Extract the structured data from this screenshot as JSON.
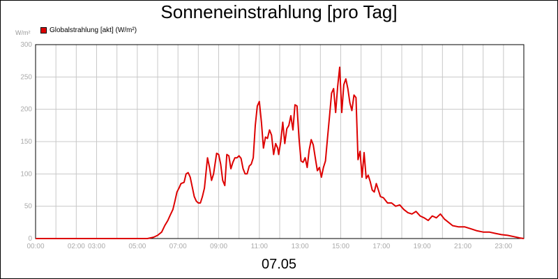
{
  "chart_data": {
    "type": "line",
    "title": "Sonneneinstrahlung [pro Tag]",
    "ylabel": "W/m²",
    "xlabel": "07.05",
    "legend": {
      "label": "Globalstrahlung [akt] (W/m²)",
      "color": "#dd0000",
      "placement": "top-left"
    },
    "ylim": [
      0,
      300
    ],
    "yticks": [
      0,
      50,
      100,
      150,
      200,
      250,
      300
    ],
    "xlim": [
      0,
      24
    ],
    "xticks": [
      {
        "x": 0,
        "label": "00:00"
      },
      {
        "x": 2,
        "label": "02:00"
      },
      {
        "x": 3,
        "label": "03:00"
      },
      {
        "x": 5,
        "label": "05:00"
      },
      {
        "x": 7,
        "label": "07:00"
      },
      {
        "x": 9,
        "label": "09:00"
      },
      {
        "x": 11,
        "label": "11:00"
      },
      {
        "x": 13,
        "label": "13:00"
      },
      {
        "x": 15,
        "label": "15:00"
      },
      {
        "x": 17,
        "label": "17:00"
      },
      {
        "x": 19,
        "label": "19:00"
      },
      {
        "x": 21,
        "label": "21:00"
      },
      {
        "x": 23,
        "label": "23:00"
      }
    ],
    "grid": true,
    "series": [
      {
        "name": "Globalstrahlung [akt] (W/m²)",
        "color": "#dd0000",
        "points": [
          [
            0,
            0
          ],
          [
            5.5,
            0
          ],
          [
            5.8,
            2
          ],
          [
            6.0,
            5
          ],
          [
            6.2,
            10
          ],
          [
            6.35,
            20
          ],
          [
            6.5,
            28
          ],
          [
            6.6,
            35
          ],
          [
            6.75,
            45
          ],
          [
            6.85,
            58
          ],
          [
            6.95,
            72
          ],
          [
            7.05,
            78
          ],
          [
            7.15,
            85
          ],
          [
            7.3,
            87
          ],
          [
            7.4,
            100
          ],
          [
            7.5,
            102
          ],
          [
            7.6,
            95
          ],
          [
            7.7,
            80
          ],
          [
            7.8,
            65
          ],
          [
            7.9,
            58
          ],
          [
            8.0,
            55
          ],
          [
            8.1,
            55
          ],
          [
            8.2,
            65
          ],
          [
            8.3,
            78
          ],
          [
            8.45,
            125
          ],
          [
            8.55,
            110
          ],
          [
            8.65,
            90
          ],
          [
            8.75,
            100
          ],
          [
            8.9,
            132
          ],
          [
            9.0,
            130
          ],
          [
            9.1,
            115
          ],
          [
            9.2,
            90
          ],
          [
            9.3,
            82
          ],
          [
            9.4,
            130
          ],
          [
            9.5,
            128
          ],
          [
            9.6,
            108
          ],
          [
            9.7,
            118
          ],
          [
            9.8,
            125
          ],
          [
            9.9,
            125
          ],
          [
            10.0,
            128
          ],
          [
            10.1,
            124
          ],
          [
            10.2,
            108
          ],
          [
            10.3,
            100
          ],
          [
            10.4,
            100
          ],
          [
            10.5,
            112
          ],
          [
            10.6,
            115
          ],
          [
            10.7,
            125
          ],
          [
            10.8,
            175
          ],
          [
            10.9,
            205
          ],
          [
            11.0,
            212
          ],
          [
            11.1,
            180
          ],
          [
            11.2,
            140
          ],
          [
            11.3,
            157
          ],
          [
            11.4,
            155
          ],
          [
            11.5,
            168
          ],
          [
            11.6,
            160
          ],
          [
            11.7,
            130
          ],
          [
            11.8,
            147
          ],
          [
            11.9,
            140
          ],
          [
            11.95,
            130
          ],
          [
            12.05,
            150
          ],
          [
            12.15,
            180
          ],
          [
            12.25,
            147
          ],
          [
            12.35,
            170
          ],
          [
            12.45,
            175
          ],
          [
            12.55,
            190
          ],
          [
            12.65,
            168
          ],
          [
            12.75,
            207
          ],
          [
            12.85,
            205
          ],
          [
            12.95,
            155
          ],
          [
            13.05,
            120
          ],
          [
            13.15,
            118
          ],
          [
            13.25,
            125
          ],
          [
            13.35,
            110
          ],
          [
            13.45,
            137
          ],
          [
            13.55,
            153
          ],
          [
            13.65,
            145
          ],
          [
            13.75,
            125
          ],
          [
            13.85,
            105
          ],
          [
            13.95,
            110
          ],
          [
            14.05,
            95
          ],
          [
            14.15,
            110
          ],
          [
            14.25,
            120
          ],
          [
            14.35,
            155
          ],
          [
            14.45,
            190
          ],
          [
            14.55,
            225
          ],
          [
            14.65,
            232
          ],
          [
            14.75,
            195
          ],
          [
            14.85,
            235
          ],
          [
            14.95,
            265
          ],
          [
            15.05,
            195
          ],
          [
            15.15,
            238
          ],
          [
            15.25,
            247
          ],
          [
            15.35,
            232
          ],
          [
            15.45,
            210
          ],
          [
            15.55,
            198
          ],
          [
            15.65,
            222
          ],
          [
            15.75,
            218
          ],
          [
            15.85,
            122
          ],
          [
            15.95,
            135
          ],
          [
            16.05,
            95
          ],
          [
            16.15,
            133
          ],
          [
            16.25,
            93
          ],
          [
            16.35,
            98
          ],
          [
            16.45,
            88
          ],
          [
            16.55,
            75
          ],
          [
            16.65,
            72
          ],
          [
            16.75,
            85
          ],
          [
            16.85,
            75
          ],
          [
            16.95,
            65
          ],
          [
            17.1,
            63
          ],
          [
            17.3,
            55
          ],
          [
            17.5,
            55
          ],
          [
            17.7,
            50
          ],
          [
            17.9,
            52
          ],
          [
            18.1,
            45
          ],
          [
            18.3,
            40
          ],
          [
            18.5,
            38
          ],
          [
            18.7,
            42
          ],
          [
            18.9,
            35
          ],
          [
            19.1,
            32
          ],
          [
            19.3,
            28
          ],
          [
            19.5,
            35
          ],
          [
            19.7,
            32
          ],
          [
            19.9,
            38
          ],
          [
            20.1,
            30
          ],
          [
            20.3,
            25
          ],
          [
            20.5,
            20
          ],
          [
            20.8,
            18
          ],
          [
            21.1,
            18
          ],
          [
            21.4,
            15
          ],
          [
            21.7,
            12
          ],
          [
            22.0,
            10
          ],
          [
            22.3,
            10
          ],
          [
            22.6,
            8
          ],
          [
            22.9,
            6
          ],
          [
            23.2,
            5
          ],
          [
            23.5,
            3
          ],
          [
            23.8,
            1
          ],
          [
            24.0,
            0
          ]
        ]
      }
    ]
  }
}
